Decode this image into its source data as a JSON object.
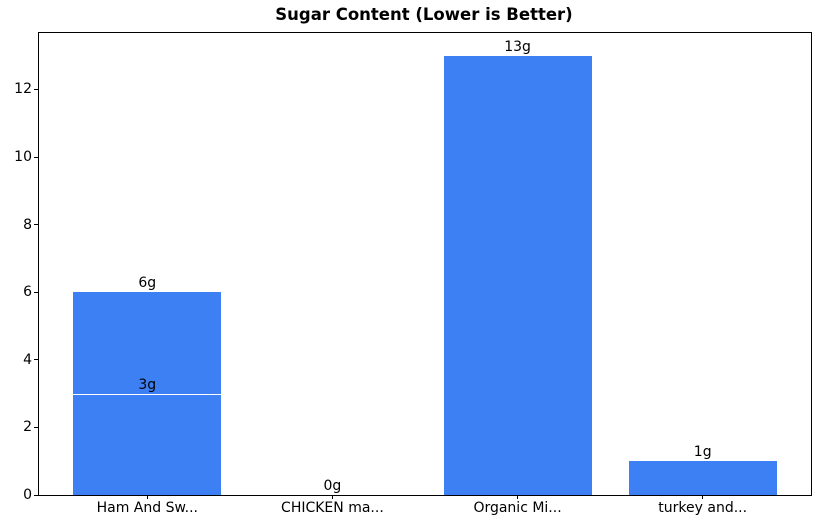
{
  "chart_data": {
    "type": "bar",
    "title": "Sugar Content (Lower is Better)",
    "categories": [
      "Ham And Sw...",
      "CHICKEN ma...",
      "Organic Mi...",
      "turkey and..."
    ],
    "values_per_category": [
      [
        6,
        3
      ],
      [
        0
      ],
      [
        13
      ],
      [
        1
      ]
    ],
    "bar_labels_per_category": [
      [
        "6g",
        "3g"
      ],
      [
        "0g"
      ],
      [
        "13g"
      ],
      [
        "1g"
      ]
    ],
    "unit": "g",
    "xlabel": "",
    "ylabel": "",
    "yticks": [
      0,
      2,
      4,
      6,
      8,
      10,
      12
    ],
    "ylim": [
      0,
      13.67
    ],
    "xlim": [
      -0.585,
      3.585
    ],
    "bar_width": 0.8,
    "grid": false,
    "legend": "none",
    "overlap_note": "first category draws two overlapping bars (6g behind, 3g in front with a white top edge)",
    "colors": {
      "bar": "#3d80f4",
      "bar_overlay_edge": "#ffffff",
      "axes": "#000000",
      "text": "#000000",
      "background": "#ffffff"
    }
  }
}
